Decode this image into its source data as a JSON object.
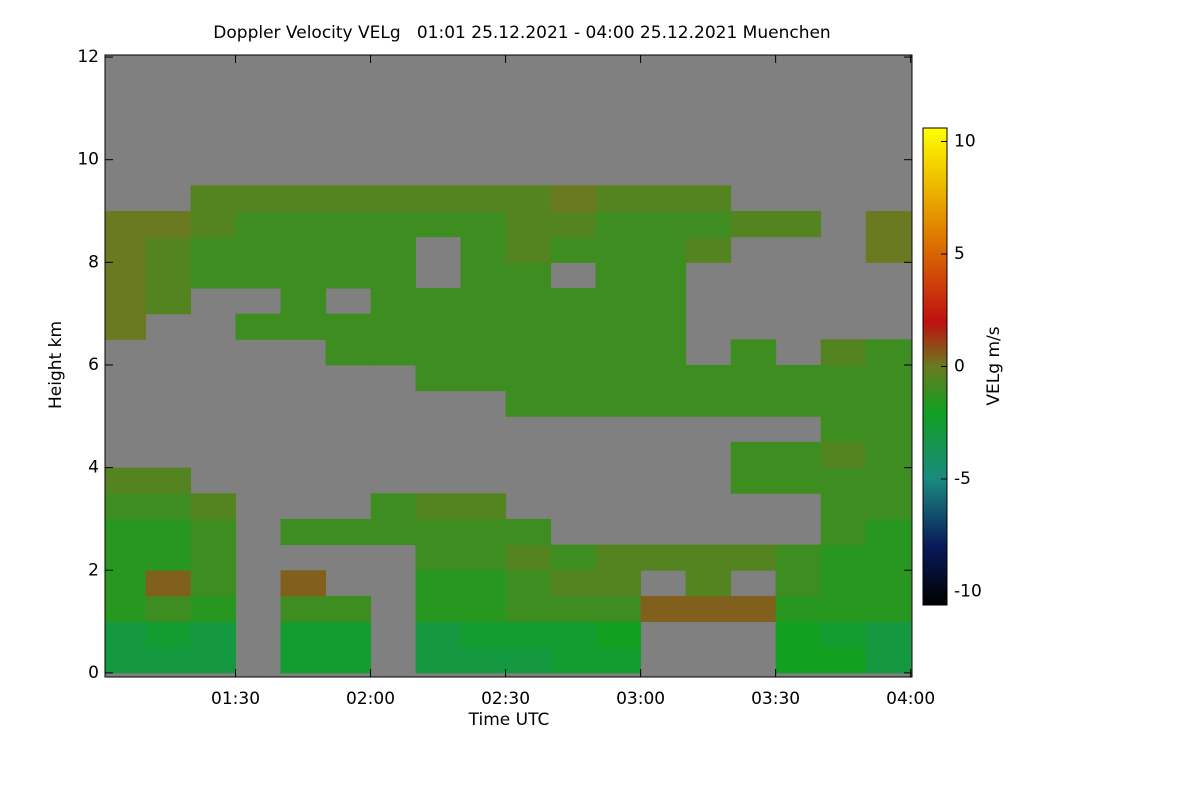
{
  "chart_data": {
    "type": "heatmap",
    "title": "Doppler Velocity VELg   01:01 25.12.2021 - 04:00 25.12.2021 Muenchen",
    "x_label": "Time UTC",
    "y_label": "Height km",
    "colorbar_label": "VELg m/s",
    "xlim": [
      61,
      240.3
    ],
    "xticks": [
      {
        "value": 90,
        "label": "01:30"
      },
      {
        "value": 120,
        "label": "02:00"
      },
      {
        "value": 150,
        "label": "02:30"
      },
      {
        "value": 180,
        "label": "03:00"
      },
      {
        "value": 210,
        "label": "03:30"
      },
      {
        "value": 240,
        "label": "04:00"
      }
    ],
    "ylim": [
      -0.08,
      12.04
    ],
    "yticks": [
      0,
      2,
      4,
      6,
      8,
      10,
      12
    ],
    "zlim": [
      -10.6,
      10.6
    ],
    "zticks": [
      -10,
      -5,
      0,
      5,
      10
    ],
    "background_color": "#808080",
    "colorscale": [
      [
        -10.6,
        "#000000"
      ],
      [
        -8,
        "#0a1a5a"
      ],
      [
        -5,
        "#1a8a80"
      ],
      [
        -2,
        "#12a020"
      ],
      [
        0,
        "#6a7a20"
      ],
      [
        2,
        "#c01010"
      ],
      [
        6,
        "#e08000"
      ],
      [
        10.6,
        "#ffff00"
      ]
    ],
    "xbins": [
      61,
      70,
      80,
      90,
      100,
      110,
      120,
      130,
      140,
      150,
      160,
      170,
      180,
      190,
      200,
      210,
      220,
      230,
      240
    ],
    "ybins": [
      0,
      0.5,
      1,
      1.5,
      2,
      2.5,
      3,
      3.5,
      4,
      4.5,
      5,
      5.5,
      6,
      6.5,
      7,
      7.5,
      8,
      8.5,
      9,
      9.5
    ],
    "z": [
      [
        -3,
        -3,
        -3,
        null,
        -2.5,
        -2.5,
        null,
        -3,
        -3,
        -3,
        -2.5,
        -2.5,
        null,
        null,
        null,
        -2,
        -2,
        -3
      ],
      [
        -3,
        -2.5,
        -3,
        null,
        -2.5,
        -2.5,
        null,
        -3,
        -2.5,
        -2.5,
        -2.5,
        -2,
        null,
        null,
        null,
        -2,
        -2.5,
        -3
      ],
      [
        -1.5,
        -1,
        -1.5,
        null,
        -1,
        -1,
        null,
        -1.5,
        -1.5,
        -1,
        -1,
        -1,
        0.5,
        0.5,
        0.5,
        -1.5,
        -1.5,
        -1.5
      ],
      [
        -1.5,
        0.5,
        -1,
        null,
        0.5,
        null,
        null,
        -1.5,
        -1.5,
        -1,
        -0.5,
        -0.5,
        null,
        -0.5,
        null,
        -1,
        -1.5,
        -1.5
      ],
      [
        -1.5,
        -1.5,
        -1,
        null,
        null,
        null,
        null,
        -1,
        -1,
        -0.5,
        -1,
        -0.5,
        -0.5,
        -0.5,
        -0.5,
        -1,
        -1.5,
        -1.5
      ],
      [
        -1.5,
        -1.5,
        -1,
        null,
        -1,
        -1,
        -1,
        -1,
        -1,
        -1,
        null,
        null,
        null,
        null,
        null,
        null,
        -1,
        -1.5
      ],
      [
        -1,
        -1,
        -0.5,
        null,
        null,
        null,
        -1,
        -0.5,
        -0.5,
        null,
        null,
        null,
        null,
        null,
        null,
        null,
        -1,
        -1
      ],
      [
        -0.5,
        -0.5,
        null,
        null,
        null,
        null,
        null,
        null,
        null,
        null,
        null,
        null,
        null,
        null,
        -1,
        -1,
        -1,
        -1
      ],
      [
        null,
        null,
        null,
        null,
        null,
        null,
        null,
        null,
        null,
        null,
        null,
        null,
        null,
        null,
        -1,
        -1,
        -0.5,
        -1
      ],
      [
        null,
        null,
        null,
        null,
        null,
        null,
        null,
        null,
        null,
        null,
        null,
        null,
        null,
        null,
        null,
        null,
        -1,
        -1
      ],
      [
        null,
        null,
        null,
        null,
        null,
        null,
        null,
        null,
        null,
        -1,
        -1,
        -1,
        -1,
        -1,
        -1,
        -1,
        -1,
        -1
      ],
      [
        null,
        null,
        null,
        null,
        null,
        null,
        null,
        -1,
        -1,
        -1,
        -1,
        -1,
        -1,
        -1,
        -1,
        -1,
        -1,
        -1
      ],
      [
        null,
        null,
        null,
        null,
        null,
        -1,
        -1,
        -1,
        -1,
        -1,
        -1,
        -1,
        -1,
        null,
        -1,
        null,
        -0.5,
        -1
      ],
      [
        0,
        null,
        null,
        -1,
        -1,
        -1,
        -1,
        -1,
        -1,
        -1,
        -1,
        -1,
        -1,
        null,
        null,
        null,
        null,
        null
      ],
      [
        0,
        -0.5,
        null,
        null,
        -1,
        null,
        -1,
        -1,
        -1,
        -1,
        -1,
        -1,
        -1,
        null,
        null,
        null,
        null,
        null
      ],
      [
        0,
        -0.5,
        -1,
        -1,
        -1,
        -1,
        -1,
        null,
        -1,
        -1,
        null,
        -1,
        -1,
        null,
        null,
        null,
        null,
        null
      ],
      [
        0,
        -0.5,
        -1,
        -1,
        -1,
        -1,
        -1,
        null,
        -1,
        -0.5,
        -1,
        -1,
        -1,
        -0.5,
        null,
        null,
        null,
        0
      ],
      [
        0,
        0,
        -0.5,
        -1,
        -1,
        -1,
        -1,
        -1,
        -1,
        -0.5,
        -0.5,
        -1,
        -1,
        -1,
        -0.5,
        -0.5,
        null,
        0
      ],
      [
        null,
        null,
        -0.5,
        -0.5,
        -0.5,
        -0.5,
        -0.5,
        -0.5,
        -0.5,
        -0.5,
        0,
        -0.5,
        -0.5,
        -0.5,
        null,
        null,
        null,
        null
      ]
    ]
  }
}
